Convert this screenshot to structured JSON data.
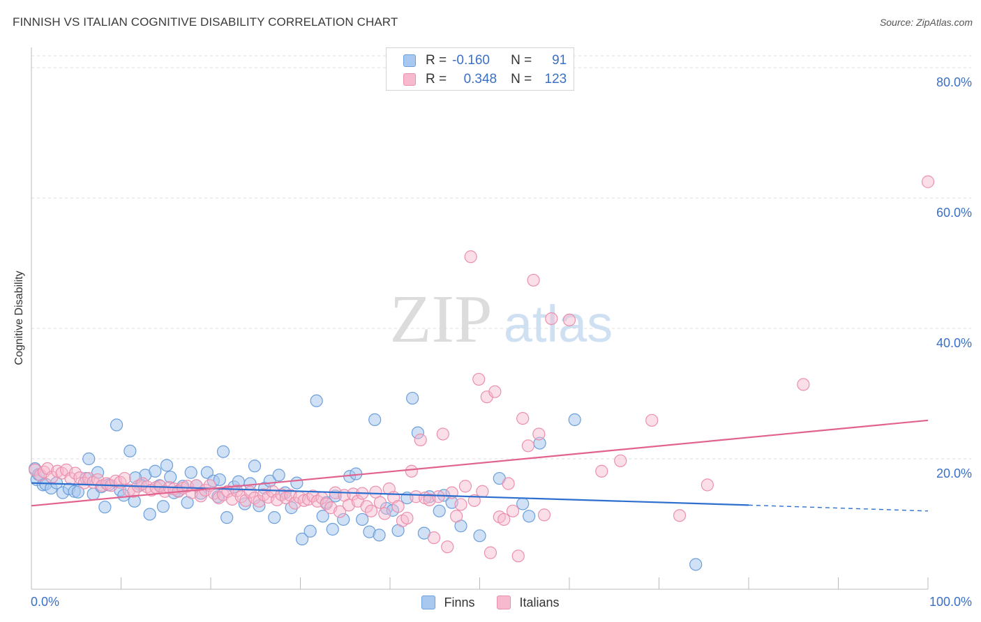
{
  "title": "FINNISH VS ITALIAN COGNITIVE DISABILITY CORRELATION CHART",
  "source": "Source: ZipAtlas.com",
  "watermark": {
    "zip": "ZIP",
    "atlas": "atlas"
  },
  "legend": {
    "rows": [
      {
        "r_label": "R =",
        "r_value": "-0.160",
        "n_label": "N =",
        "n_value": "91"
      },
      {
        "r_label": "R =",
        "r_value": "0.348",
        "n_label": "N =",
        "n_value": "123"
      }
    ]
  },
  "bottom_legend": {
    "finns": "Finns",
    "italians": "Italians"
  },
  "colors": {
    "finns_fill": "#a9c8ef",
    "finns_stroke": "#6b9fdc",
    "finns_line": "#2d6fce",
    "italians_fill": "#f6b9cd",
    "italians_stroke": "#eb8fae",
    "italians_line": "#e2628e",
    "tick_text": "#3a70c7",
    "grid": "#dddddd"
  },
  "chart_data": {
    "type": "scatter",
    "title": "FINNISH VS ITALIAN COGNITIVE DISABILITY CORRELATION CHART",
    "xlabel": "",
    "ylabel": "Cognitive Disability",
    "xlim": [
      0,
      100
    ],
    "ylim": [
      0,
      80
    ],
    "x_tick_labels": [
      "0.0%",
      "100.0%"
    ],
    "y_ticks": [
      20,
      40,
      60,
      80
    ],
    "y_tick_labels": [
      "20.0%",
      "40.0%",
      "60.0%",
      "80.0%"
    ],
    "grid": "horizontal dashed",
    "legend_position": "top-center",
    "series": [
      {
        "name": "Finns",
        "r": -0.16,
        "n": 91,
        "trend": {
          "x": [
            0,
            80
          ],
          "y": [
            16.3,
            12.9
          ],
          "dashed_extension": {
            "x": [
              80,
              100
            ],
            "y": [
              12.9,
              12.0
            ]
          }
        },
        "points": [
          [
            0.4,
            18.5
          ],
          [
            0.6,
            16.8
          ],
          [
            0.8,
            17.6
          ],
          [
            1.3,
            16.0
          ],
          [
            1.6,
            16.1
          ],
          [
            2.2,
            15.5
          ],
          [
            2.8,
            16.3
          ],
          [
            3.5,
            14.8
          ],
          [
            4.2,
            15.4
          ],
          [
            4.8,
            15.0
          ],
          [
            5.2,
            14.9
          ],
          [
            6.4,
            20.0
          ],
          [
            6.9,
            14.6
          ],
          [
            7.4,
            17.9
          ],
          [
            7.8,
            15.7
          ],
          [
            8.2,
            12.6
          ],
          [
            8.6,
            16.0
          ],
          [
            9.5,
            25.2
          ],
          [
            9.9,
            15.2
          ],
          [
            10.3,
            14.4
          ],
          [
            11.0,
            21.2
          ],
          [
            11.5,
            13.5
          ],
          [
            12.2,
            16.0
          ],
          [
            12.7,
            17.5
          ],
          [
            13.2,
            11.5
          ],
          [
            13.8,
            18.1
          ],
          [
            14.3,
            15.9
          ],
          [
            14.7,
            12.7
          ],
          [
            15.1,
            19.0
          ],
          [
            15.5,
            17.2
          ],
          [
            15.9,
            14.8
          ],
          [
            16.4,
            15.1
          ],
          [
            16.9,
            15.8
          ],
          [
            17.4,
            13.3
          ],
          [
            17.8,
            17.9
          ],
          [
            18.4,
            15.9
          ],
          [
            18.9,
            14.7
          ],
          [
            19.6,
            17.9
          ],
          [
            20.3,
            16.6
          ],
          [
            21.0,
            16.8
          ],
          [
            21.4,
            21.1
          ],
          [
            21.8,
            11.0
          ],
          [
            22.6,
            15.7
          ],
          [
            23.1,
            16.5
          ],
          [
            23.8,
            13.1
          ],
          [
            24.4,
            16.2
          ],
          [
            24.9,
            18.9
          ],
          [
            25.4,
            12.8
          ],
          [
            26.0,
            15.5
          ],
          [
            26.6,
            16.6
          ],
          [
            27.1,
            11.0
          ],
          [
            27.6,
            17.5
          ],
          [
            28.3,
            14.8
          ],
          [
            29.0,
            12.5
          ],
          [
            29.6,
            16.3
          ],
          [
            30.2,
            7.7
          ],
          [
            31.1,
            8.9
          ],
          [
            31.8,
            28.9
          ],
          [
            32.5,
            11.2
          ],
          [
            32.9,
            13.3
          ],
          [
            33.6,
            9.2
          ],
          [
            34.8,
            10.7
          ],
          [
            35.5,
            17.3
          ],
          [
            36.2,
            17.7
          ],
          [
            36.9,
            10.7
          ],
          [
            37.7,
            8.8
          ],
          [
            38.3,
            26.0
          ],
          [
            38.8,
            8.3
          ],
          [
            39.6,
            12.4
          ],
          [
            40.3,
            12.1
          ],
          [
            40.9,
            9.0
          ],
          [
            41.9,
            14.0
          ],
          [
            42.5,
            29.3
          ],
          [
            43.1,
            24.0
          ],
          [
            43.8,
            8.6
          ],
          [
            44.4,
            14.2
          ],
          [
            45.5,
            12.0
          ],
          [
            46.0,
            14.4
          ],
          [
            47.9,
            9.7
          ],
          [
            50.0,
            8.2
          ],
          [
            52.2,
            17.0
          ],
          [
            54.8,
            13.1
          ],
          [
            55.5,
            11.2
          ],
          [
            56.7,
            22.4
          ],
          [
            60.6,
            26.0
          ],
          [
            74.1,
            3.8
          ],
          [
            46.9,
            13.3
          ],
          [
            33.9,
            14.3
          ],
          [
            20.8,
            14.2
          ],
          [
            11.6,
            17.1
          ],
          [
            6.1,
            17.0
          ]
        ]
      },
      {
        "name": "Italians",
        "r": 0.348,
        "n": 123,
        "trend": {
          "x": [
            0,
            100
          ],
          "y": [
            12.8,
            25.9
          ]
        },
        "points": [
          [
            0.4,
            18.3
          ],
          [
            1.0,
            17.5
          ],
          [
            1.4,
            18.0
          ],
          [
            1.8,
            18.5
          ],
          [
            2.3,
            17.2
          ],
          [
            2.9,
            18.1
          ],
          [
            3.4,
            17.8
          ],
          [
            3.9,
            18.3
          ],
          [
            4.4,
            17.0
          ],
          [
            4.9,
            17.8
          ],
          [
            5.4,
            17.1
          ],
          [
            5.9,
            16.3
          ],
          [
            6.4,
            17.0
          ],
          [
            6.9,
            16.4
          ],
          [
            7.4,
            16.8
          ],
          [
            7.9,
            15.9
          ],
          [
            8.4,
            16.2
          ],
          [
            8.9,
            15.9
          ],
          [
            9.4,
            16.6
          ],
          [
            9.9,
            16.4
          ],
          [
            10.4,
            17.0
          ],
          [
            10.9,
            15.2
          ],
          [
            11.4,
            15.0
          ],
          [
            11.9,
            15.8
          ],
          [
            12.4,
            16.2
          ],
          [
            12.9,
            15.7
          ],
          [
            13.4,
            15.2
          ],
          [
            13.9,
            15.6
          ],
          [
            14.4,
            15.8
          ],
          [
            14.9,
            15.0
          ],
          [
            15.4,
            15.6
          ],
          [
            15.9,
            15.4
          ],
          [
            16.4,
            15.0
          ],
          [
            16.9,
            15.5
          ],
          [
            17.4,
            15.8
          ],
          [
            17.9,
            14.8
          ],
          [
            18.4,
            15.9
          ],
          [
            18.9,
            14.3
          ],
          [
            19.4,
            15.2
          ],
          [
            19.9,
            15.9
          ],
          [
            20.4,
            14.7
          ],
          [
            20.9,
            14.0
          ],
          [
            21.4,
            14.5
          ],
          [
            21.9,
            15.0
          ],
          [
            22.4,
            13.8
          ],
          [
            22.9,
            15.1
          ],
          [
            23.4,
            14.2
          ],
          [
            23.9,
            13.6
          ],
          [
            24.4,
            14.9
          ],
          [
            24.9,
            14.0
          ],
          [
            25.4,
            13.5
          ],
          [
            25.9,
            14.5
          ],
          [
            26.4,
            14.1
          ],
          [
            26.9,
            15.0
          ],
          [
            27.4,
            13.7
          ],
          [
            27.9,
            14.5
          ],
          [
            28.4,
            14.0
          ],
          [
            28.9,
            14.4
          ],
          [
            29.4,
            13.2
          ],
          [
            29.9,
            14.1
          ],
          [
            30.4,
            13.6
          ],
          [
            30.9,
            13.8
          ],
          [
            31.4,
            14.3
          ],
          [
            31.9,
            13.5
          ],
          [
            32.4,
            14.0
          ],
          [
            32.9,
            13.1
          ],
          [
            33.4,
            12.5
          ],
          [
            33.9,
            14.8
          ],
          [
            34.4,
            11.9
          ],
          [
            34.9,
            14.4
          ],
          [
            35.4,
            12.9
          ],
          [
            35.9,
            14.6
          ],
          [
            36.4,
            13.5
          ],
          [
            36.9,
            14.7
          ],
          [
            37.4,
            12.7
          ],
          [
            37.9,
            12.0
          ],
          [
            38.4,
            14.9
          ],
          [
            38.9,
            13.3
          ],
          [
            39.4,
            11.6
          ],
          [
            39.9,
            15.4
          ],
          [
            40.4,
            14.1
          ],
          [
            40.9,
            12.7
          ],
          [
            41.4,
            10.5
          ],
          [
            41.9,
            10.9
          ],
          [
            42.4,
            18.1
          ],
          [
            42.9,
            14.2
          ],
          [
            43.4,
            22.9
          ],
          [
            43.9,
            14.0
          ],
          [
            44.4,
            13.7
          ],
          [
            44.9,
            7.9
          ],
          [
            45.4,
            14.2
          ],
          [
            45.9,
            23.8
          ],
          [
            46.4,
            6.5
          ],
          [
            46.9,
            14.8
          ],
          [
            47.4,
            11.2
          ],
          [
            47.9,
            13.0
          ],
          [
            48.4,
            15.8
          ],
          [
            49.0,
            51.0
          ],
          [
            49.4,
            13.6
          ],
          [
            49.9,
            32.2
          ],
          [
            50.3,
            15.0
          ],
          [
            50.8,
            29.5
          ],
          [
            51.2,
            5.6
          ],
          [
            51.7,
            30.3
          ],
          [
            52.2,
            11.1
          ],
          [
            52.7,
            10.7
          ],
          [
            53.2,
            16.2
          ],
          [
            53.7,
            12.0
          ],
          [
            54.3,
            5.1
          ],
          [
            54.8,
            26.2
          ],
          [
            55.4,
            22.0
          ],
          [
            56.0,
            47.4
          ],
          [
            56.6,
            23.8
          ],
          [
            57.2,
            11.4
          ],
          [
            58.0,
            41.5
          ],
          [
            60.0,
            41.3
          ],
          [
            63.6,
            18.1
          ],
          [
            65.7,
            19.7
          ],
          [
            69.2,
            25.9
          ],
          [
            72.3,
            11.3
          ],
          [
            75.4,
            16.0
          ],
          [
            86.1,
            31.4
          ],
          [
            100.0,
            62.5
          ]
        ]
      }
    ]
  }
}
